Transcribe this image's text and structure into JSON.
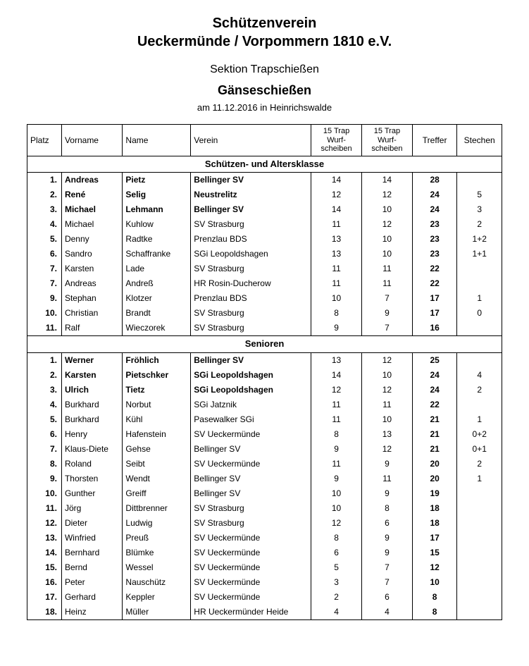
{
  "header": {
    "line1": "Schützenverein",
    "line2": "Ueckermünde / Vorpommern 1810 e.V.",
    "section": "Sektion Trapschießen",
    "event": "Gänseschießen",
    "date_place": "am 11.12.2016 in Heinrichswalde"
  },
  "columns": {
    "platz": "Platz",
    "vorname": "Vorname",
    "name": "Name",
    "verein": "Verein",
    "trap1": "15 Trap Wurf-scheiben",
    "trap2": "15 Trap Wurf-scheiben",
    "treffer": "Treffer",
    "stechen": "Stechen"
  },
  "sections": [
    {
      "title": "Schützen- und Altersklasse",
      "rows": [
        {
          "platz": "1.",
          "bold": true,
          "vor": "Andreas",
          "nam": "Pietz",
          "ver": "Bellinger SV",
          "t1": "14",
          "t2": "14",
          "tre": "28",
          "ste": ""
        },
        {
          "platz": "2.",
          "bold": true,
          "vor": "René",
          "nam": "Selig",
          "ver": "Neustrelitz",
          "t1": "12",
          "t2": "12",
          "tre": "24",
          "ste": "5"
        },
        {
          "platz": "3.",
          "bold": true,
          "vor": "Michael",
          "nam": "Lehmann",
          "ver": "Bellinger SV",
          "t1": "14",
          "t2": "10",
          "tre": "24",
          "ste": "3"
        },
        {
          "platz": "4.",
          "bold": false,
          "vor": "Michael",
          "nam": "Kuhlow",
          "ver": "SV Strasburg",
          "t1": "11",
          "t2": "12",
          "tre": "23",
          "ste": "2"
        },
        {
          "platz": "5.",
          "bold": false,
          "vor": "Denny",
          "nam": "Radtke",
          "ver": "Prenzlau BDS",
          "t1": "13",
          "t2": "10",
          "tre": "23",
          "ste": "1+2"
        },
        {
          "platz": "6.",
          "bold": false,
          "vor": "Sandro",
          "nam": "Schaffranke",
          "ver": "SGi Leopoldshagen",
          "t1": "13",
          "t2": "10",
          "tre": "23",
          "ste": "1+1"
        },
        {
          "platz": "7.",
          "bold": false,
          "vor": "Karsten",
          "nam": "Lade",
          "ver": "SV Strasburg",
          "t1": "11",
          "t2": "11",
          "tre": "22",
          "ste": ""
        },
        {
          "platz": "7.",
          "bold": false,
          "vor": "Andreas",
          "nam": "Andreß",
          "ver": "HR Rosin-Ducherow",
          "t1": "11",
          "t2": "11",
          "tre": "22",
          "ste": ""
        },
        {
          "platz": "9.",
          "bold": false,
          "vor": "Stephan",
          "nam": "Klotzer",
          "ver": "Prenzlau BDS",
          "t1": "10",
          "t2": "7",
          "tre": "17",
          "ste": "1"
        },
        {
          "platz": "10.",
          "bold": false,
          "vor": "Christian",
          "nam": "Brandt",
          "ver": "SV Strasburg",
          "t1": "8",
          "t2": "9",
          "tre": "17",
          "ste": "0"
        },
        {
          "platz": "11.",
          "bold": false,
          "vor": "Ralf",
          "nam": "Wieczorek",
          "ver": "SV Strasburg",
          "t1": "9",
          "t2": "7",
          "tre": "16",
          "ste": ""
        }
      ]
    },
    {
      "title": "Senioren",
      "rows": [
        {
          "platz": "1.",
          "bold": true,
          "vor": "Werner",
          "nam": "Fröhlich",
          "ver": "Bellinger SV",
          "t1": "13",
          "t2": "12",
          "tre": "25",
          "ste": ""
        },
        {
          "platz": "2.",
          "bold": true,
          "vor": "Karsten",
          "nam": "Pietschker",
          "ver": "SGi Leopoldshagen",
          "t1": "14",
          "t2": "10",
          "tre": "24",
          "ste": "4"
        },
        {
          "platz": "3.",
          "bold": true,
          "vor": "Ulrich",
          "nam": "Tietz",
          "ver": "SGi Leopoldshagen",
          "t1": "12",
          "t2": "12",
          "tre": "24",
          "ste": "2"
        },
        {
          "platz": "4.",
          "bold": false,
          "vor": "Burkhard",
          "nam": "Norbut",
          "ver": "SGi Jatznik",
          "t1": "11",
          "t2": "11",
          "tre": "22",
          "ste": ""
        },
        {
          "platz": "5.",
          "bold": false,
          "vor": "Burkhard",
          "nam": "Kühl",
          "ver": "Pasewalker SGi",
          "t1": "11",
          "t2": "10",
          "tre": "21",
          "ste": "1"
        },
        {
          "platz": "6.",
          "bold": false,
          "vor": "Henry",
          "nam": "Hafenstein",
          "ver": "SV Ueckermünde",
          "t1": "8",
          "t2": "13",
          "tre": "21",
          "ste": "0+2"
        },
        {
          "platz": "7.",
          "bold": false,
          "vor": "Klaus-Diete",
          "nam": "Gehse",
          "ver": "Bellinger SV",
          "t1": "9",
          "t2": "12",
          "tre": "21",
          "ste": "0+1"
        },
        {
          "platz": "8.",
          "bold": false,
          "vor": "Roland",
          "nam": "Seibt",
          "ver": "SV Ueckermünde",
          "t1": "11",
          "t2": "9",
          "tre": "20",
          "ste": "2"
        },
        {
          "platz": "9.",
          "bold": false,
          "vor": "Thorsten",
          "nam": "Wendt",
          "ver": "Bellinger SV",
          "t1": "9",
          "t2": "11",
          "tre": "20",
          "ste": "1"
        },
        {
          "platz": "10.",
          "bold": false,
          "vor": "Gunther",
          "nam": "Greiff",
          "ver": "Bellinger SV",
          "t1": "10",
          "t2": "9",
          "tre": "19",
          "ste": ""
        },
        {
          "platz": "11.",
          "bold": false,
          "vor": "Jörg",
          "nam": "Dittbrenner",
          "ver": "SV Strasburg",
          "t1": "10",
          "t2": "8",
          "tre": "18",
          "ste": ""
        },
        {
          "platz": "12.",
          "bold": false,
          "vor": "Dieter",
          "nam": "Ludwig",
          "ver": "SV Strasburg",
          "t1": "12",
          "t2": "6",
          "tre": "18",
          "ste": ""
        },
        {
          "platz": "13.",
          "bold": false,
          "vor": "Winfried",
          "nam": "Preuß",
          "ver": "SV Ueckermünde",
          "t1": "8",
          "t2": "9",
          "tre": "17",
          "ste": ""
        },
        {
          "platz": "14.",
          "bold": false,
          "vor": "Bernhard",
          "nam": "Blümke",
          "ver": "SV Ueckermünde",
          "t1": "6",
          "t2": "9",
          "tre": "15",
          "ste": ""
        },
        {
          "platz": "15.",
          "bold": false,
          "vor": "Bernd",
          "nam": "Wessel",
          "ver": "SV Ueckermünde",
          "t1": "5",
          "t2": "7",
          "tre": "12",
          "ste": ""
        },
        {
          "platz": "16.",
          "bold": false,
          "vor": "Peter",
          "nam": "Nauschütz",
          "ver": "SV Ueckermünde",
          "t1": "3",
          "t2": "7",
          "tre": "10",
          "ste": ""
        },
        {
          "platz": "17.",
          "bold": false,
          "vor": "Gerhard",
          "nam": "Keppler",
          "ver": "SV Ueckermünde",
          "t1": "2",
          "t2": "6",
          "tre": "8",
          "ste": ""
        },
        {
          "platz": "18.",
          "bold": false,
          "vor": "Heinz",
          "nam": "Müller",
          "ver": "HR Ueckermünder Heide",
          "t1": "4",
          "t2": "4",
          "tre": "8",
          "ste": ""
        }
      ]
    }
  ]
}
